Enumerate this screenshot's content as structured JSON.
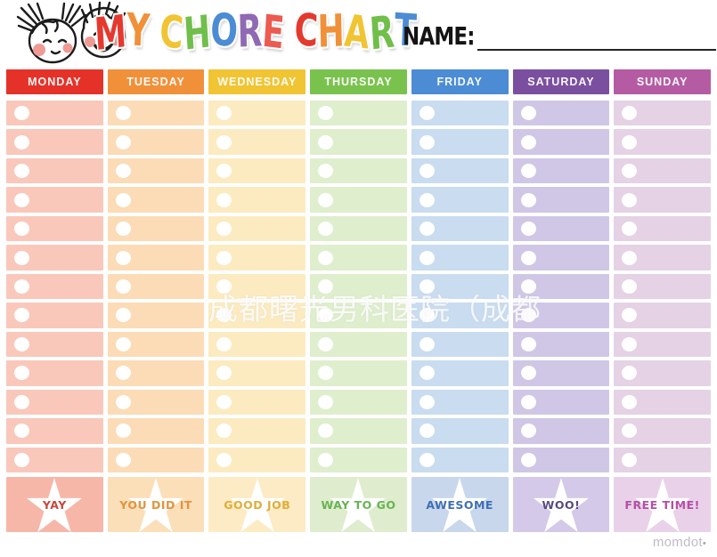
{
  "header": {
    "title_text": "MY CHORE CHART",
    "title_letters": [
      {
        "ch": "M",
        "color": "#e4392f"
      },
      {
        "ch": "Y",
        "color": "#f0913a"
      },
      {
        "ch": " ",
        "color": ""
      },
      {
        "ch": "C",
        "color": "#f1c433"
      },
      {
        "ch": "H",
        "color": "#70bf4a"
      },
      {
        "ch": "O",
        "color": "#4b8cd5"
      },
      {
        "ch": "R",
        "color": "#9069b5"
      },
      {
        "ch": "E",
        "color": "#ed5a50"
      },
      {
        "ch": " ",
        "color": ""
      },
      {
        "ch": "C",
        "color": "#e4392f"
      },
      {
        "ch": "H",
        "color": "#f0913a"
      },
      {
        "ch": "A",
        "color": "#f1c433"
      },
      {
        "ch": "R",
        "color": "#70bf4a"
      },
      {
        "ch": "T",
        "color": "#4b8cd5"
      }
    ],
    "name_label": "NAME:",
    "name_value": "",
    "illustration": "two-kids-faces"
  },
  "table": {
    "rows_per_column": 13,
    "columns": [
      {
        "day": "MONDAY",
        "header_color": "#e53229",
        "row_color": "#f9c8ba",
        "footer_color": "#f6b7a9",
        "footer_label": "YAY",
        "footer_label_color": "#c9473b"
      },
      {
        "day": "TUESDAY",
        "header_color": "#f0913a",
        "row_color": "#fbdcb6",
        "footer_color": "#fbdfb9",
        "footer_label": "YOU DID IT",
        "footer_label_color": "#e2943e"
      },
      {
        "day": "WEDNESDAY",
        "header_color": "#f1c433",
        "row_color": "#fcebc0",
        "footer_color": "#fcebc4",
        "footer_label": "GOOD JOB",
        "footer_label_color": "#dfae3a"
      },
      {
        "day": "THURSDAY",
        "header_color": "#7ac24e",
        "row_color": "#dfeecd",
        "footer_color": "#dfeccd",
        "footer_label": "WAY TO GO",
        "footer_label_color": "#67b454"
      },
      {
        "day": "FRIDAY",
        "header_color": "#4b8cd5",
        "row_color": "#c9dcf0",
        "footer_color": "#c9d7ec",
        "footer_label": "AWESOME",
        "footer_label_color": "#3f6fb5"
      },
      {
        "day": "SATURDAY",
        "header_color": "#7b4fa0",
        "row_color": "#d0c7e6",
        "footer_color": "#d4c9e8",
        "footer_label": "WOO!",
        "footer_label_color": "#584a80"
      },
      {
        "day": "SUNDAY",
        "header_color": "#b45ba3",
        "row_color": "#e5d2e5",
        "footer_color": "#e9d2e9",
        "footer_label": "FREE TIME!",
        "footer_label_color": "#b54fa5"
      }
    ]
  },
  "icons": {
    "footer_star": "star",
    "row_bullet": "circle"
  },
  "watermark": {
    "text": "成都曙光男科医院（成都",
    "color": "#ffffff"
  },
  "brand": {
    "label": "momdot",
    "dot": "•"
  }
}
